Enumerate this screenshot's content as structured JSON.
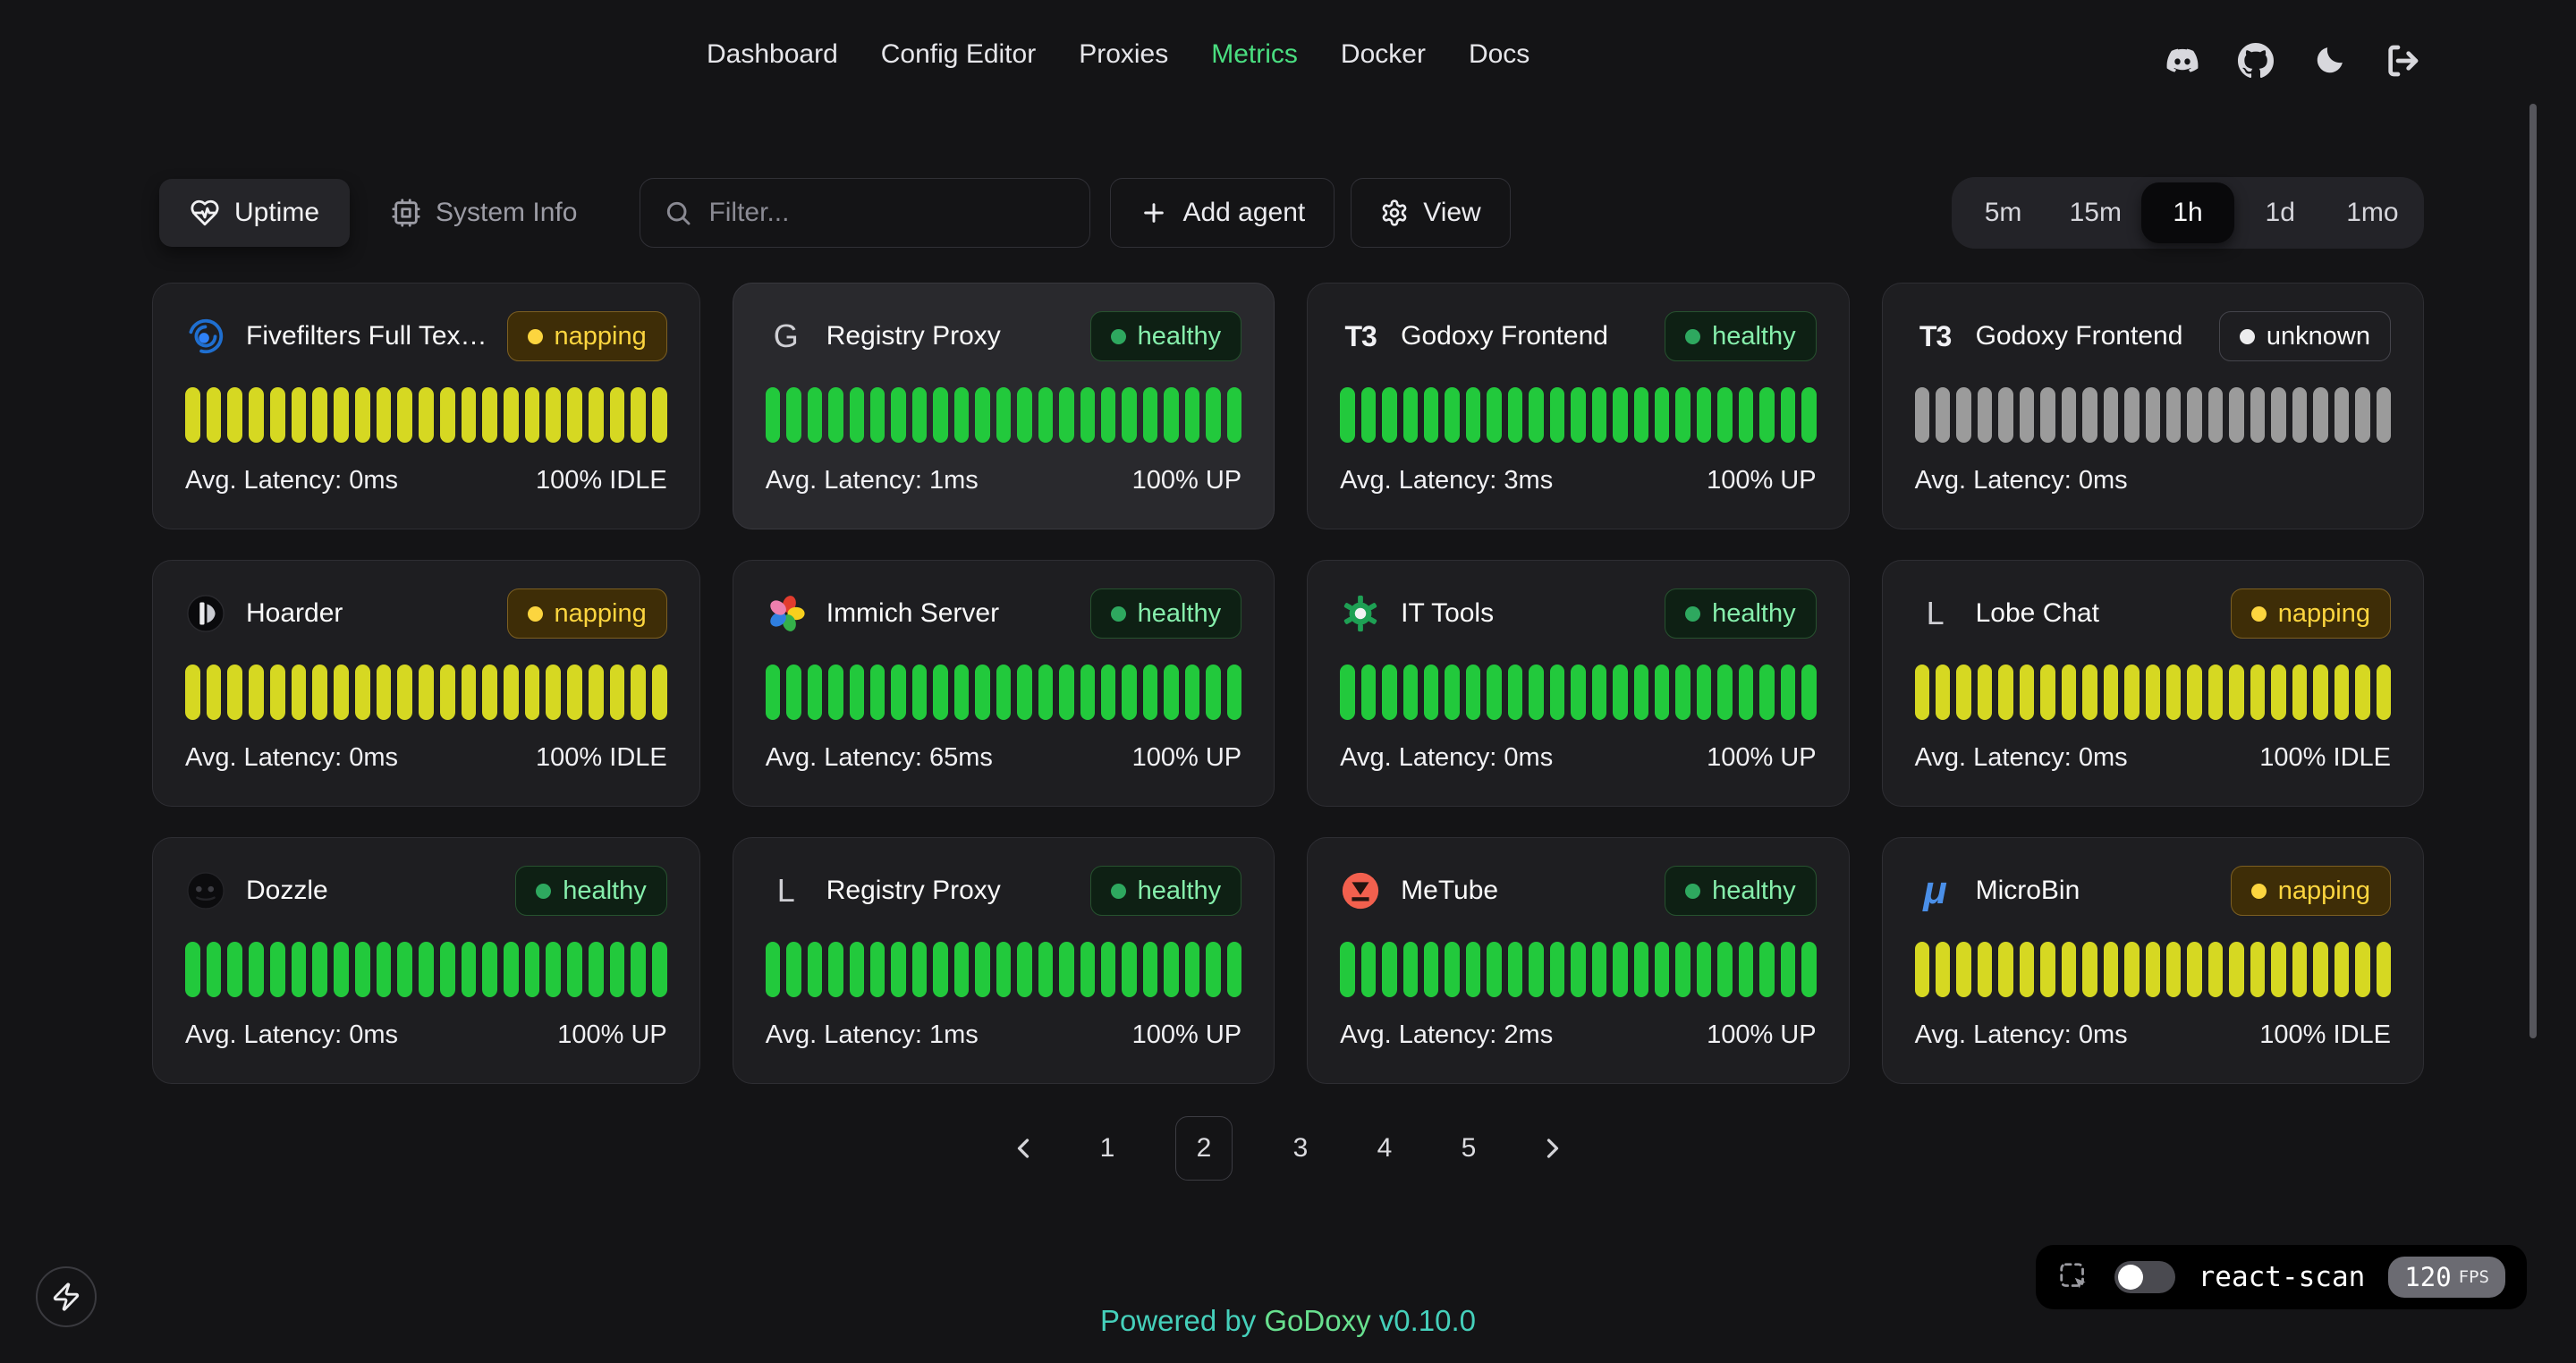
{
  "nav": {
    "items": [
      {
        "label": "Dashboard",
        "active": false
      },
      {
        "label": "Config Editor",
        "active": false
      },
      {
        "label": "Proxies",
        "active": false
      },
      {
        "label": "Metrics",
        "active": true
      },
      {
        "label": "Docker",
        "active": false
      },
      {
        "label": "Docs",
        "active": false
      }
    ]
  },
  "header_icons": [
    {
      "name": "discord-icon"
    },
    {
      "name": "github-icon"
    },
    {
      "name": "dark-mode-moon-icon"
    },
    {
      "name": "logout-icon"
    }
  ],
  "toolbar": {
    "tabs": [
      {
        "label": "Uptime",
        "icon": "heart-pulse-icon",
        "active": true
      },
      {
        "label": "System Info",
        "icon": "cpu-icon",
        "active": false
      }
    ],
    "filter": {
      "placeholder": "Filter...",
      "icon": "search-icon"
    },
    "add_agent": {
      "label": "Add agent",
      "icon": "plus-icon"
    },
    "view": {
      "label": "View",
      "icon": "gear-icon"
    },
    "time_ranges": [
      {
        "label": "5m",
        "active": false
      },
      {
        "label": "15m",
        "active": false
      },
      {
        "label": "1h",
        "active": true
      },
      {
        "label": "1d",
        "active": false
      },
      {
        "label": "1mo",
        "active": false
      }
    ]
  },
  "cards": [
    {
      "name": "Fivefilters Full Tex…",
      "icon": "fivefilters",
      "status": "napping",
      "latency": "Avg. Latency: 0ms",
      "uptime": "100% IDLE",
      "highlighted": false,
      "bars": {
        "count": 23,
        "color": "#d6d822"
      }
    },
    {
      "name": "Registry Proxy",
      "icon": "letter-g",
      "status": "healthy",
      "latency": "Avg. Latency: 1ms",
      "uptime": "100% UP",
      "highlighted": true,
      "bars": {
        "count": 23,
        "color": "#22c93c"
      }
    },
    {
      "name": "Godoxy Frontend",
      "icon": "t3",
      "status": "healthy",
      "latency": "Avg. Latency: 3ms",
      "uptime": "100% UP",
      "highlighted": false,
      "bars": {
        "count": 23,
        "color": "#22c93c"
      }
    },
    {
      "name": "Godoxy Frontend",
      "icon": "t3",
      "status": "unknown",
      "latency": "Avg. Latency: 0ms",
      "uptime": "",
      "highlighted": false,
      "bars": {
        "count": 23,
        "color": "#9b9b9b"
      }
    },
    {
      "name": "Hoarder",
      "icon": "hoarder",
      "status": "napping",
      "latency": "Avg. Latency: 0ms",
      "uptime": "100% IDLE",
      "highlighted": false,
      "bars": {
        "count": 23,
        "color": "#d6d822"
      }
    },
    {
      "name": "Immich Server",
      "icon": "immich",
      "status": "healthy",
      "latency": "Avg. Latency: 65ms",
      "uptime": "100% UP",
      "highlighted": false,
      "bars": {
        "count": 23,
        "color": "#22c93c"
      }
    },
    {
      "name": "IT Tools",
      "icon": "ittools",
      "status": "healthy",
      "latency": "Avg. Latency: 0ms",
      "uptime": "100% UP",
      "highlighted": false,
      "bars": {
        "count": 23,
        "color": "#22c93c"
      }
    },
    {
      "name": "Lobe Chat",
      "icon": "letter-l",
      "status": "napping",
      "latency": "Avg. Latency: 0ms",
      "uptime": "100% IDLE",
      "highlighted": false,
      "bars": {
        "count": 23,
        "color": "#d6d822"
      }
    },
    {
      "name": "Dozzle",
      "icon": "dozzle",
      "status": "healthy",
      "latency": "Avg. Latency: 0ms",
      "uptime": "100% UP",
      "highlighted": false,
      "bars": {
        "count": 23,
        "color": "#22c93c"
      }
    },
    {
      "name": "Registry Proxy",
      "icon": "letter-l",
      "status": "healthy",
      "latency": "Avg. Latency: 1ms",
      "uptime": "100% UP",
      "highlighted": false,
      "bars": {
        "count": 23,
        "color": "#22c93c"
      }
    },
    {
      "name": "MeTube",
      "icon": "metube",
      "status": "healthy",
      "latency": "Avg. Latency: 2ms",
      "uptime": "100% UP",
      "highlighted": false,
      "bars": {
        "count": 23,
        "color": "#22c93c"
      }
    },
    {
      "name": "MicroBin",
      "icon": "microbin",
      "status": "napping",
      "latency": "Avg. Latency: 0ms",
      "uptime": "100% IDLE",
      "highlighted": false,
      "bars": {
        "count": 23,
        "color": "#d6d822"
      }
    }
  ],
  "pagination": {
    "pages": [
      "1",
      "2",
      "3",
      "4",
      "5"
    ],
    "active_page": "2"
  },
  "footer": {
    "powered_by": "Powered by",
    "brand": "GoDoxy",
    "version": "v0.10.0"
  },
  "react_scan": {
    "label": "react-scan",
    "fps": "120",
    "fps_unit": "FPS"
  },
  "colors": {
    "accent_green": "#4ade80",
    "bar_green": "#22c93c",
    "bar_yellow": "#d6d822",
    "bar_gray": "#9b9b9b",
    "badge_napping_text": "#fcd53f",
    "badge_healthy_text": "#86efac",
    "footer_teal": "#45d0bb",
    "footer_brand_green": "#68e08f"
  }
}
